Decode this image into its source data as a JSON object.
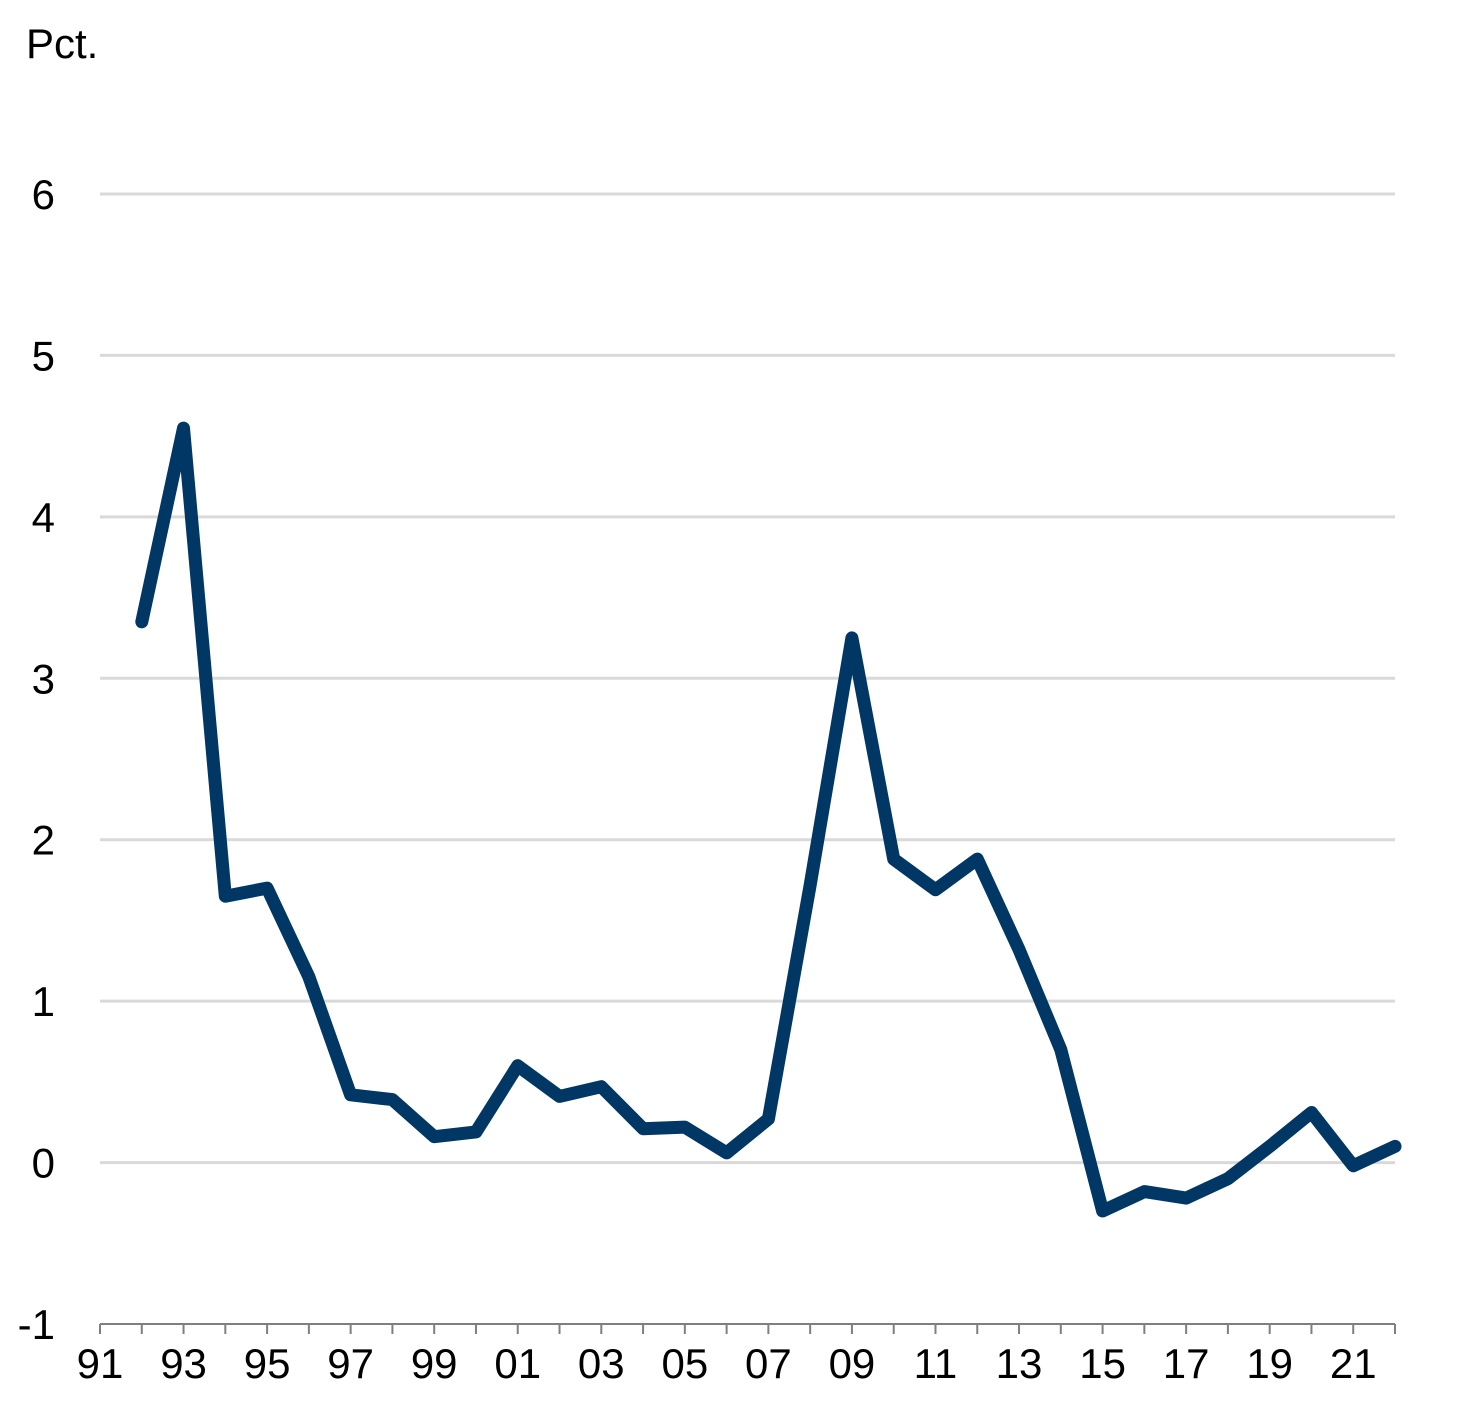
{
  "chart_data": {
    "type": "line",
    "ylabel": "Pct.",
    "ylim": [
      -1,
      6
    ],
    "yticks": [
      "6",
      "5",
      "4",
      "3",
      "2",
      "1",
      "0",
      "-1"
    ],
    "grid": true,
    "x_tick_labels": [
      "91",
      "93",
      "95",
      "97",
      "99",
      "01",
      "03",
      "05",
      "07",
      "09",
      "11",
      "13",
      "15",
      "17",
      "19",
      "21"
    ],
    "x": [
      1992,
      1993,
      1994,
      1995,
      1996,
      1997,
      1998,
      1999,
      2000,
      2001,
      2002,
      2003,
      2004,
      2005,
      2006,
      2007,
      2008,
      2009,
      2010,
      2011,
      2012,
      2013,
      2014,
      2015,
      2016,
      2017,
      2018,
      2019,
      2020,
      2021,
      2022
    ],
    "series": [
      {
        "values": [
          3.35,
          4.55,
          1.65,
          1.7,
          1.15,
          0.42,
          0.39,
          0.16,
          0.19,
          0.6,
          0.41,
          0.47,
          0.21,
          0.22,
          0.06,
          0.27,
          1.72,
          3.25,
          1.88,
          1.69,
          1.88,
          1.32,
          0.7,
          -0.3,
          -0.18,
          -0.22,
          -0.1,
          0.1,
          0.31,
          -0.02,
          0.1
        ]
      }
    ],
    "colors": {
      "line": "#003764",
      "grid": "#d9d9d9",
      "axis": "#7f7f7f"
    }
  }
}
